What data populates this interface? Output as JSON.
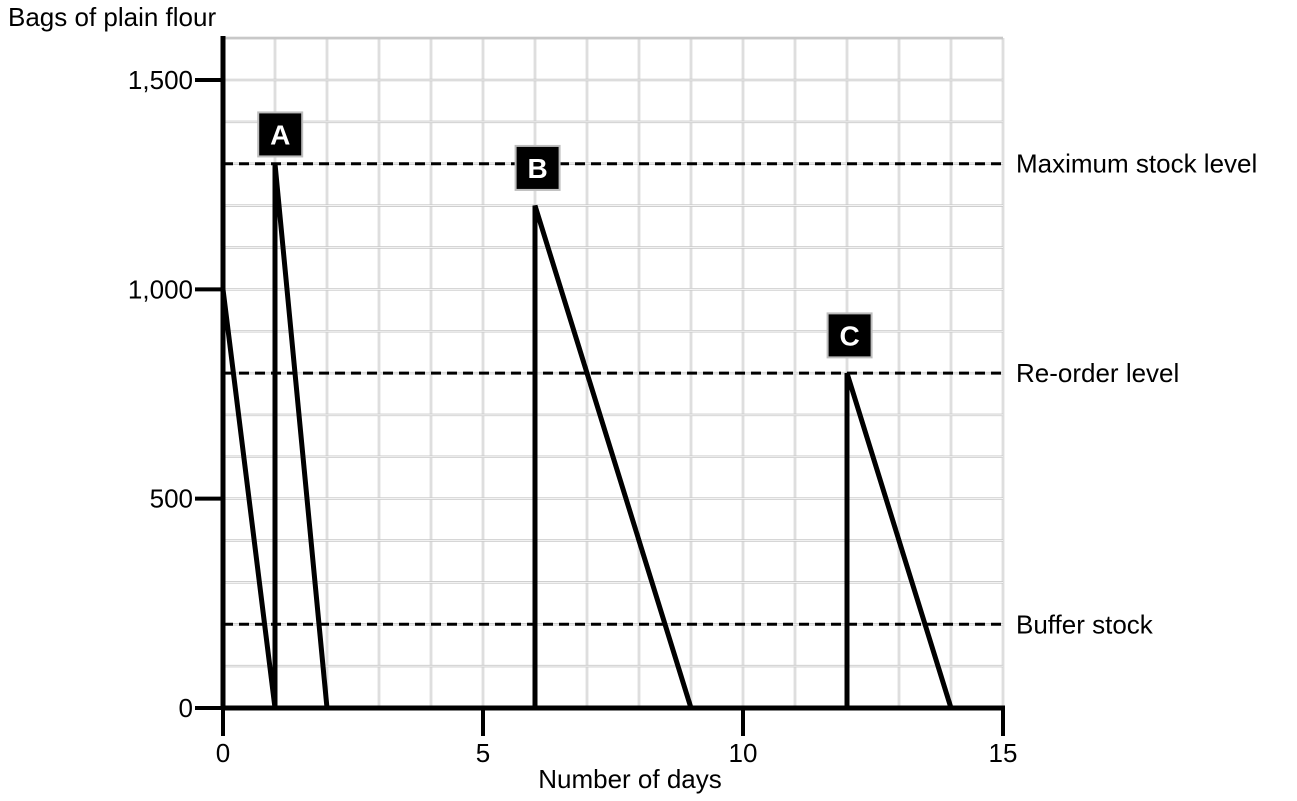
{
  "chart_data": {
    "type": "line",
    "ylabel": "Bags of plain flour",
    "xlabel": "Number of days",
    "xlim": [
      0,
      15
    ],
    "ylim": [
      0,
      1500
    ],
    "x_ticks": [
      0,
      5,
      10,
      15
    ],
    "y_ticks": [
      0,
      500,
      1000,
      1500
    ],
    "y_tick_labels": [
      "0",
      "500",
      "1,000",
      "1,500"
    ],
    "grid": true,
    "grid_minor_x": 1,
    "grid_minor_y": 100,
    "series": [
      {
        "points": [
          [
            0,
            1000
          ],
          [
            1,
            0
          ],
          [
            1,
            1300
          ],
          [
            2,
            0
          ],
          [
            6,
            0
          ],
          [
            6,
            1200
          ],
          [
            9,
            0
          ],
          [
            12,
            0
          ],
          [
            12,
            800
          ],
          [
            14,
            0
          ]
        ]
      }
    ],
    "reference_lines": [
      {
        "label": "Maximum stock level",
        "y": 1300
      },
      {
        "label": "Re-order level",
        "y": 800
      },
      {
        "label": "Buffer stock",
        "y": 200
      }
    ],
    "annotations": [
      {
        "label": "A",
        "x": 1.1,
        "y": 1370
      },
      {
        "label": "B",
        "x": 6.05,
        "y": 1290
      },
      {
        "label": "C",
        "x": 12.05,
        "y": 890
      }
    ]
  }
}
